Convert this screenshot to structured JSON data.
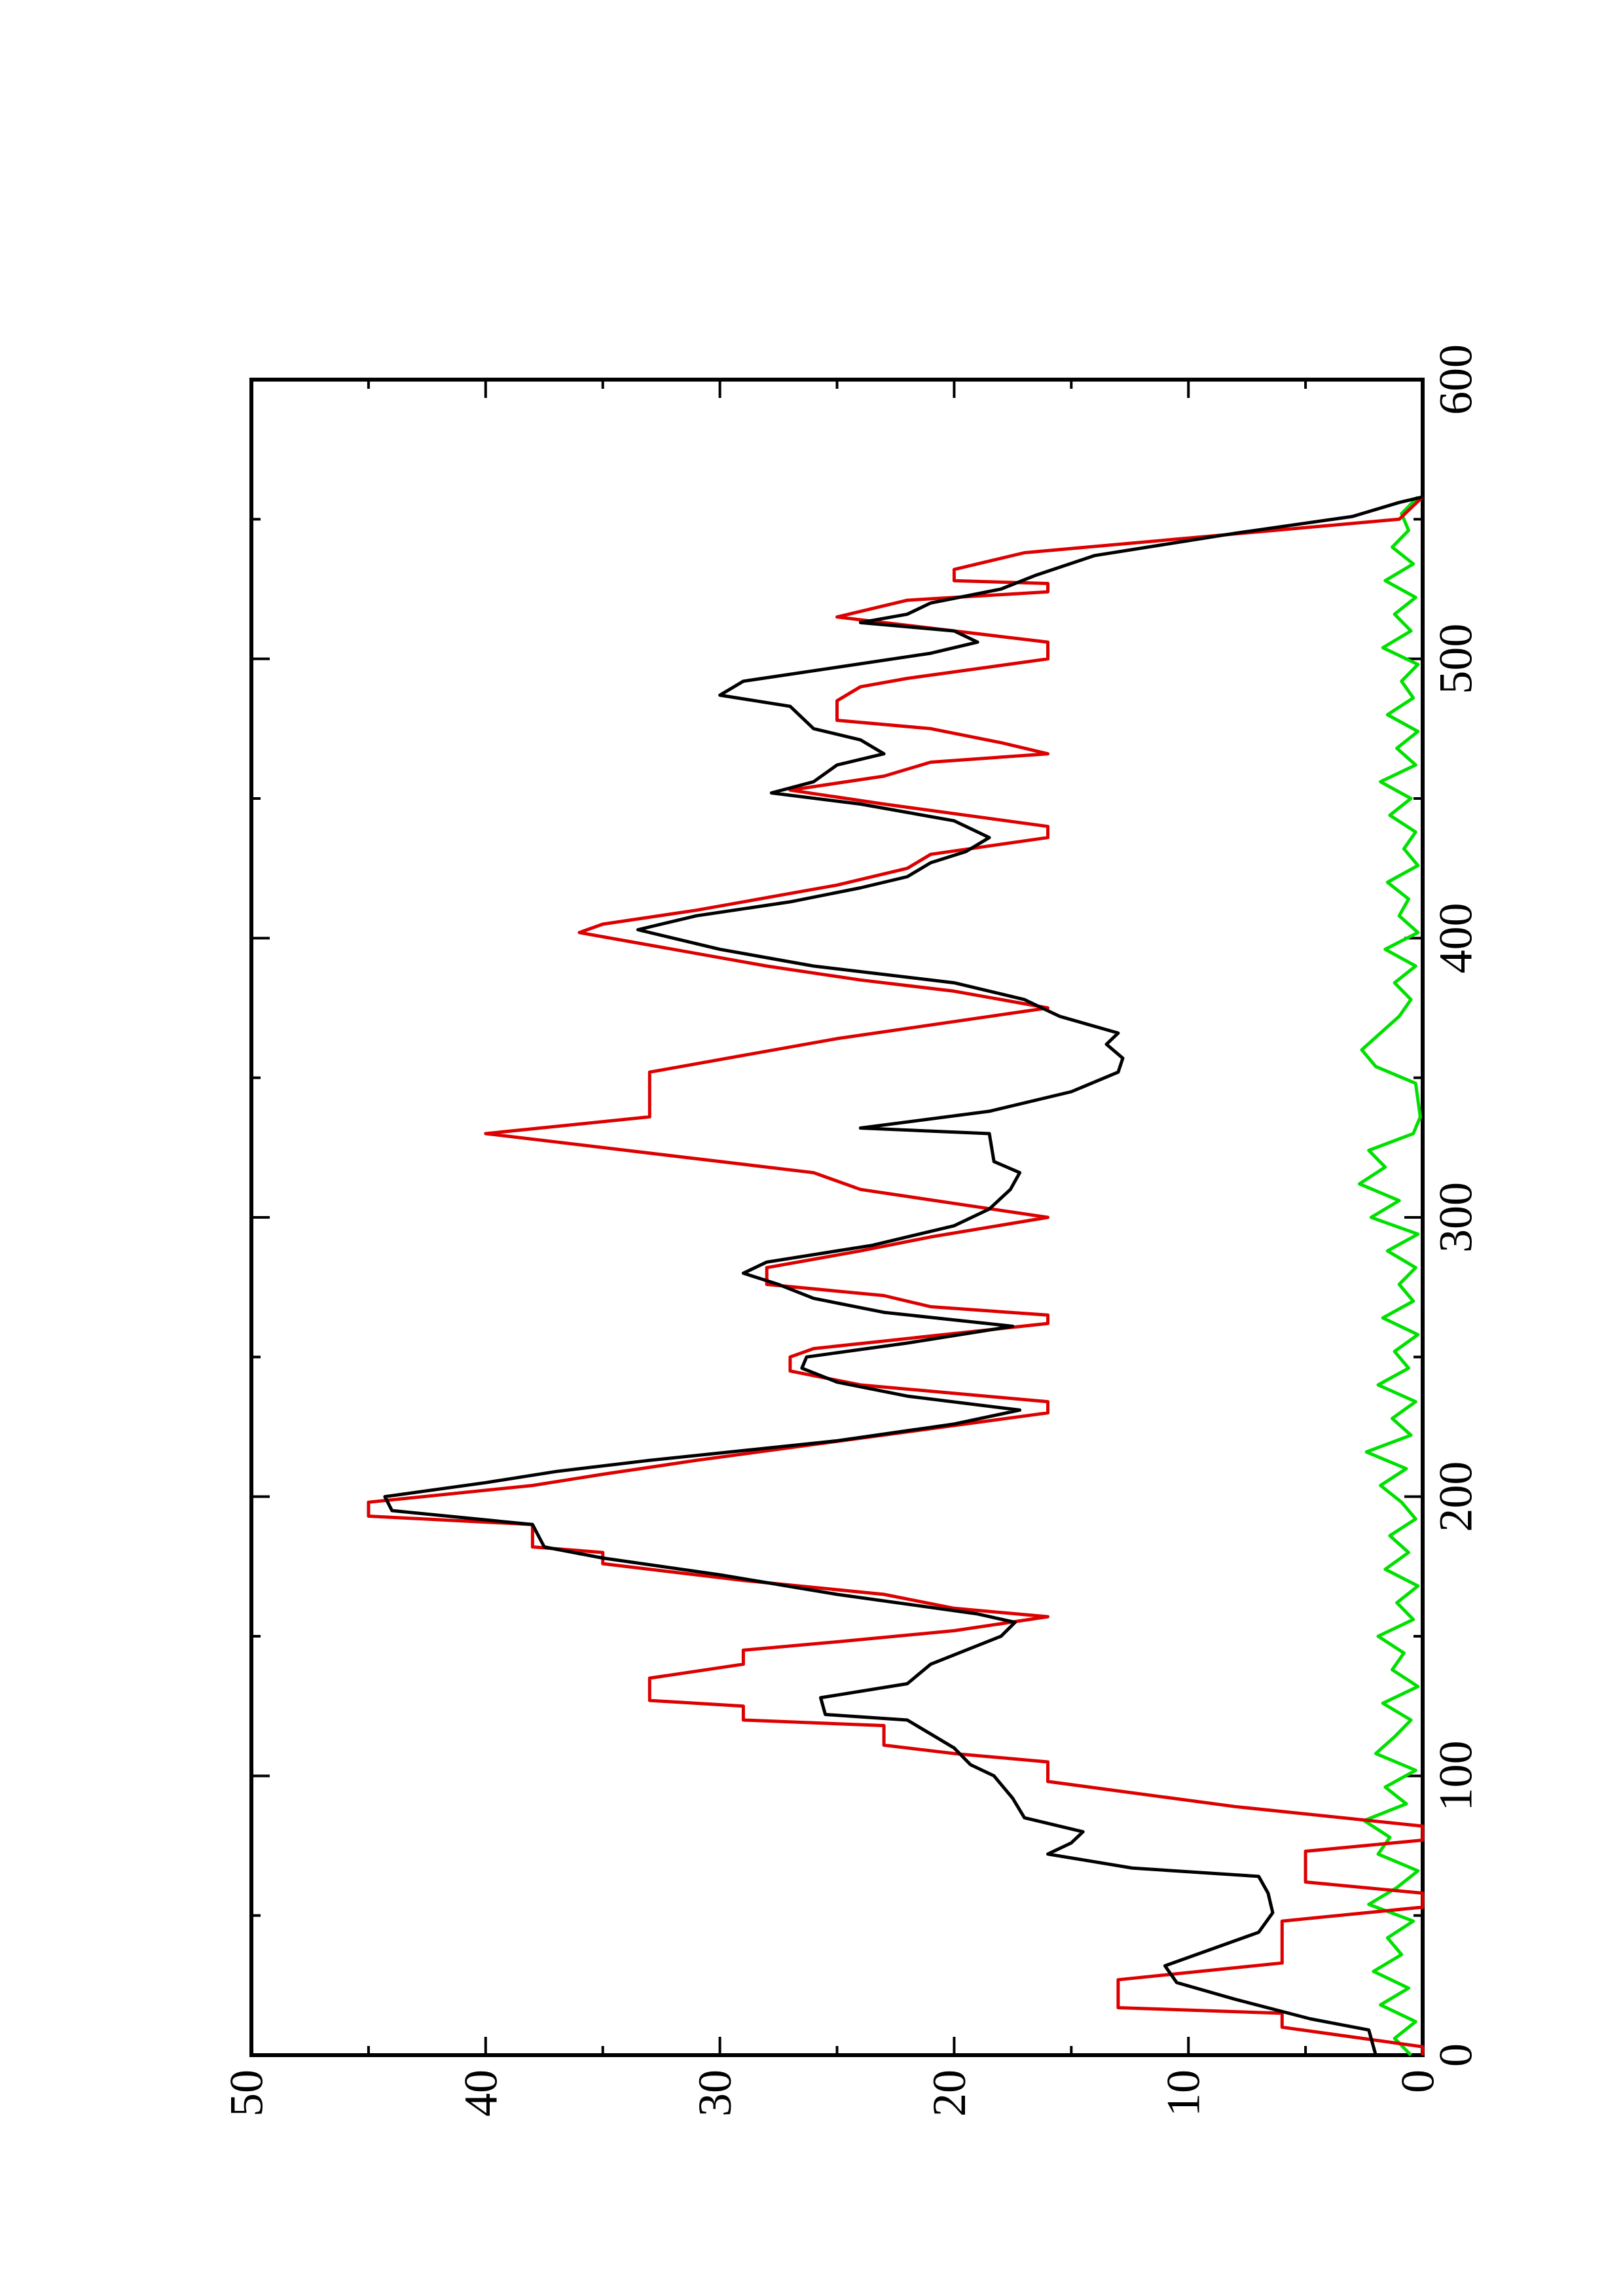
{
  "chart_data": {
    "type": "line",
    "xlim": [
      0,
      600
    ],
    "ylim": [
      0,
      50
    ],
    "xticks": [
      0,
      100,
      200,
      300,
      400,
      500,
      600
    ],
    "yticks": [
      0,
      10,
      20,
      30,
      40,
      50
    ],
    "xminorticks": [
      50,
      150,
      250,
      350,
      450,
      550
    ],
    "yminorticks": [
      5,
      15,
      25,
      35,
      45
    ],
    "series": [
      {
        "color": "#000000",
        "x": [
          0,
          9,
          13,
          20,
          26,
          32,
          38,
          44,
          51,
          58,
          64,
          67,
          72,
          76,
          80,
          85,
          92,
          100,
          104,
          110,
          115,
          120,
          122,
          128,
          133,
          140,
          145,
          150,
          155,
          158,
          165,
          172,
          178,
          182,
          190,
          195,
          200,
          205,
          209,
          213,
          220,
          226,
          231,
          236,
          241,
          246,
          250,
          255,
          261,
          266,
          271,
          276,
          280,
          284,
          290,
          297,
          303,
          310,
          316,
          320,
          330,
          332,
          338,
          345,
          352,
          357,
          362,
          366,
          372,
          378,
          384,
          390,
          396,
          403,
          408,
          413,
          418,
          422,
          427,
          431,
          436,
          442,
          448,
          452,
          456,
          462,
          466,
          471,
          475,
          483,
          487,
          492,
          497,
          502,
          506,
          510,
          513,
          516,
          520,
          525,
          530,
          537,
          545,
          551,
          556,
          558
        ],
        "values": [
          2,
          2.3,
          4.8,
          8,
          10.5,
          11,
          9,
          7,
          6.4,
          6.6,
          7,
          12.4,
          16,
          15,
          14.5,
          17,
          17.5,
          18.3,
          19.3,
          20,
          21,
          22,
          25.5,
          25.7,
          22,
          21,
          19.5,
          18,
          17.4,
          19,
          25,
          30,
          35,
          37.5,
          38,
          44,
          44.3,
          40,
          37,
          33,
          25,
          20,
          17.2,
          22,
          25,
          26.5,
          26.3,
          22,
          17.5,
          23,
          26,
          27.5,
          29,
          28,
          23.5,
          20,
          18.5,
          17.6,
          17.2,
          18.3,
          18.5,
          24,
          18.5,
          15,
          13,
          12.8,
          13.5,
          13,
          15.5,
          17,
          20,
          26,
          30,
          33.5,
          31,
          27,
          24,
          22,
          21,
          19.5,
          18.5,
          20,
          24,
          27.8,
          26,
          25,
          23,
          24,
          26,
          27,
          30,
          29,
          25,
          21,
          19,
          20,
          24,
          22,
          21,
          18,
          16.5,
          14,
          8,
          3,
          1,
          0
        ]
      },
      {
        "color": "#dd0000",
        "x": [
          0,
          3,
          10,
          15,
          17,
          27,
          33,
          48,
          53,
          58,
          62,
          73,
          77,
          82,
          89,
          98,
          105,
          108,
          111,
          118,
          120,
          125,
          127,
          135,
          140,
          145,
          148,
          152,
          157,
          160,
          165,
          170,
          176,
          180,
          182,
          190,
          193,
          198,
          204,
          208,
          213,
          230,
          234,
          240,
          245,
          250,
          253,
          262,
          265,
          268,
          272,
          276,
          282,
          288,
          293,
          300,
          305,
          310,
          316,
          330,
          336,
          352,
          364,
          375,
          381,
          385,
          390,
          402,
          405,
          410,
          416,
          419,
          425,
          430,
          436,
          440,
          448,
          453,
          458,
          463,
          466,
          470,
          475,
          478,
          485,
          490,
          493,
          500,
          506,
          510,
          515,
          521,
          524,
          527,
          528,
          532,
          538,
          550,
          558
        ],
        "values": [
          0,
          0,
          6,
          6,
          13,
          13,
          6,
          6,
          0,
          0,
          5,
          5,
          0,
          0,
          8,
          16,
          16,
          20,
          23,
          23,
          29,
          29,
          33,
          33,
          29,
          29,
          25,
          20,
          16,
          20,
          23,
          29,
          35,
          35,
          38,
          38,
          45,
          45,
          38,
          35,
          31,
          16,
          16,
          24,
          27,
          27,
          26,
          16,
          16,
          21,
          23,
          28,
          28,
          24,
          21,
          16,
          20,
          24,
          26,
          40,
          33,
          33,
          25,
          16,
          20,
          24,
          28,
          36,
          35,
          31,
          27,
          25,
          22,
          21,
          16,
          16,
          23,
          27,
          23,
          21,
          16,
          18,
          21,
          25,
          25,
          24,
          22,
          16,
          16,
          20,
          25,
          22,
          16,
          16,
          20,
          20,
          17,
          1,
          0
        ]
      },
      {
        "color": "#00e000",
        "x": [
          0,
          6,
          12,
          18,
          24,
          30,
          36,
          42,
          48,
          54,
          60,
          66,
          72,
          78,
          84,
          90,
          96,
          102,
          108,
          114,
          120,
          126,
          132,
          138,
          144,
          150,
          156,
          162,
          168,
          174,
          180,
          186,
          192,
          198,
          204,
          210,
          216,
          222,
          228,
          234,
          240,
          246,
          252,
          258,
          264,
          270,
          276,
          282,
          288,
          294,
          300,
          306,
          312,
          318,
          324,
          330,
          336,
          342,
          348,
          354,
          360,
          366,
          372,
          378,
          384,
          390,
          396,
          402,
          408,
          414,
          420,
          426,
          432,
          438,
          444,
          450,
          456,
          462,
          468,
          474,
          480,
          486,
          492,
          498,
          504,
          510,
          516,
          522,
          528,
          534,
          540,
          546,
          552,
          558
        ],
        "values": [
          0.5,
          1.2,
          0.3,
          1.8,
          0.6,
          2.1,
          0.9,
          1.5,
          0.4,
          2.3,
          1.1,
          0.2,
          1.9,
          1.4,
          2.5,
          0.7,
          1.6,
          0.3,
          2.0,
          1.2,
          0.5,
          1.7,
          0.2,
          1.3,
          0.8,
          1.9,
          0.4,
          1.1,
          0.2,
          1.6,
          0.6,
          1.4,
          0.3,
          0.9,
          1.8,
          0.7,
          2.4,
          0.5,
          1.3,
          0.3,
          1.9,
          0.6,
          1.2,
          0.2,
          1.7,
          0.4,
          1.0,
          0.3,
          1.5,
          0.2,
          2.2,
          1.0,
          2.7,
          1.6,
          2.3,
          0.4,
          0.1,
          0.2,
          0.3,
          2.0,
          2.6,
          1.8,
          1.0,
          0.5,
          1.2,
          0.3,
          1.6,
          0.2,
          1.0,
          0.6,
          1.5,
          0.2,
          0.8,
          0.3,
          1.4,
          0.5,
          1.8,
          0.3,
          1.1,
          0.2,
          1.5,
          0.4,
          0.9,
          0.2,
          1.7,
          0.5,
          1.2,
          0.3,
          1.6,
          0.4,
          1.3,
          0.6,
          0.9,
          0.2
        ]
      }
    ]
  }
}
